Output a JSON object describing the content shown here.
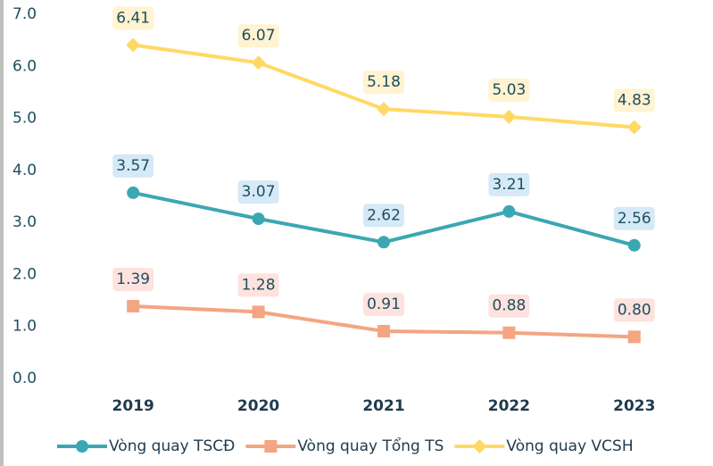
{
  "chart_data": {
    "type": "line",
    "categories": [
      "2019",
      "2020",
      "2021",
      "2022",
      "2023"
    ],
    "series": [
      {
        "name": "Vòng quay TSCĐ",
        "color": "#3ba7b2",
        "label_bg": "#d5e9f7",
        "marker": "circle",
        "values": [
          3.57,
          3.07,
          2.62,
          3.21,
          2.56
        ]
      },
      {
        "name": "Vòng quay Tổng TS",
        "color": "#f4a582",
        "label_bg": "#fde2de",
        "marker": "square",
        "values": [
          1.39,
          1.28,
          0.91,
          0.88,
          0.8
        ],
        "value_labels": [
          "1.39",
          "1.28",
          "0.91",
          "0.88",
          "0.80"
        ]
      },
      {
        "name": "Vòng quay VCSH",
        "color": "#ffd966",
        "label_bg": "#fff3d1",
        "marker": "diamond",
        "values": [
          6.41,
          6.07,
          5.18,
          5.03,
          4.83
        ]
      }
    ],
    "ylim": [
      0,
      7
    ],
    "yticks": [
      {
        "value": 0,
        "label": "0.0"
      },
      {
        "value": 1,
        "label": "1.0"
      },
      {
        "value": 2,
        "label": "2.0"
      },
      {
        "value": 3,
        "label": "3.0"
      },
      {
        "value": 4,
        "label": "4.0"
      },
      {
        "value": 5,
        "label": "5.0"
      },
      {
        "value": 6,
        "label": "6.0"
      },
      {
        "value": 7,
        "label": "7.0"
      }
    ],
    "grid": false
  }
}
